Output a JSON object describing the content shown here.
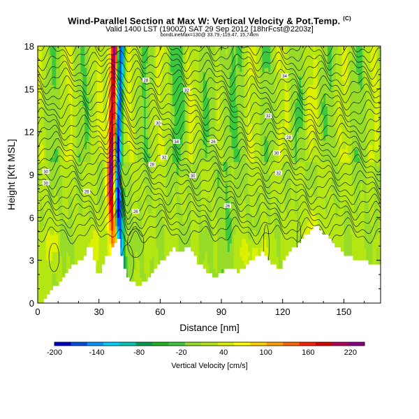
{
  "header": {
    "title": "Wind-Parallel Section at Max W: Vertical Velocity & Pot.Temp.",
    "copyright": "(C)",
    "valid_line": "Valid 1400 LST (1900Z) SAT 29 Sep 2012 [18hrFcst@2203z]",
    "info_line": "bondLineMax=130@ 33.79,-119.47, 15,74km"
  },
  "chart_data": {
    "type": "heatmap",
    "title": "Wind-Parallel Section at Max W: Vertical Velocity & Pot.Temp.",
    "xlabel": "Distance [nm]",
    "ylabel": "Height [Kft MSL]",
    "xlim": [
      0,
      168
    ],
    "ylim": [
      0,
      18
    ],
    "x_ticks": [
      "0",
      "30",
      "60",
      "90",
      "120",
      "150"
    ],
    "y_ticks": [
      "0",
      "3",
      "6",
      "9",
      "12",
      "15",
      "18"
    ],
    "colorbar": {
      "label": "Vertical Velocity [cm/s]",
      "ticks": [
        "-200",
        "-140",
        "-80",
        "-20",
        "40",
        "100",
        "160",
        "220"
      ],
      "min": -200,
      "max": 240,
      "colors": [
        "#0000c8",
        "#0050e6",
        "#0096ff",
        "#00d2ff",
        "#00c8b4",
        "#00a050",
        "#1eb41e",
        "#3cc83c",
        "#96dc28",
        "#b4e614",
        "#dcf000",
        "#ffff00",
        "#ffd200",
        "#ffa000",
        "#ff6400",
        "#ff1e00",
        "#dc0000",
        "#b4005a",
        "#8c0082"
      ]
    },
    "terrain_kft": [
      [
        0,
        0
      ],
      [
        3,
        0.2
      ],
      [
        6,
        0.8
      ],
      [
        10,
        1.5
      ],
      [
        14,
        2.2
      ],
      [
        18,
        2.8
      ],
      [
        22,
        3
      ],
      [
        25,
        4.2
      ],
      [
        29,
        1.8
      ],
      [
        32,
        3
      ],
      [
        35,
        3.5
      ],
      [
        37,
        4.2
      ],
      [
        39,
        4.6
      ],
      [
        41,
        3
      ],
      [
        43,
        2
      ],
      [
        45,
        1.6
      ],
      [
        48,
        1.2
      ],
      [
        52,
        1.5
      ],
      [
        55,
        2.1
      ],
      [
        58,
        2.6
      ],
      [
        62,
        3.1
      ],
      [
        66,
        3.8
      ],
      [
        70,
        3.6
      ],
      [
        74,
        4
      ],
      [
        78,
        2.8
      ],
      [
        82,
        2.2
      ],
      [
        86,
        1.8
      ],
      [
        90,
        2.2
      ],
      [
        94,
        2.5
      ],
      [
        98,
        2.2
      ],
      [
        102,
        2.6
      ],
      [
        106,
        3.3
      ],
      [
        110,
        3.5
      ],
      [
        114,
        2.8
      ],
      [
        118,
        2.4
      ],
      [
        122,
        3.4
      ],
      [
        126,
        4
      ],
      [
        130,
        4.6
      ],
      [
        134,
        5.2
      ],
      [
        137,
        5.4
      ],
      [
        140,
        4.8
      ],
      [
        144,
        4.2
      ],
      [
        148,
        3.6
      ],
      [
        152,
        3.2
      ],
      [
        157,
        3
      ],
      [
        162,
        2.8
      ],
      [
        168,
        2.7
      ]
    ],
    "theta_contour_labels": [
      "30",
      "30",
      "26",
      "26",
      "28",
      "28",
      "30",
      "32",
      "34",
      "32",
      "30",
      "26",
      "26",
      "32",
      "30",
      "32",
      "34",
      "28"
    ]
  }
}
